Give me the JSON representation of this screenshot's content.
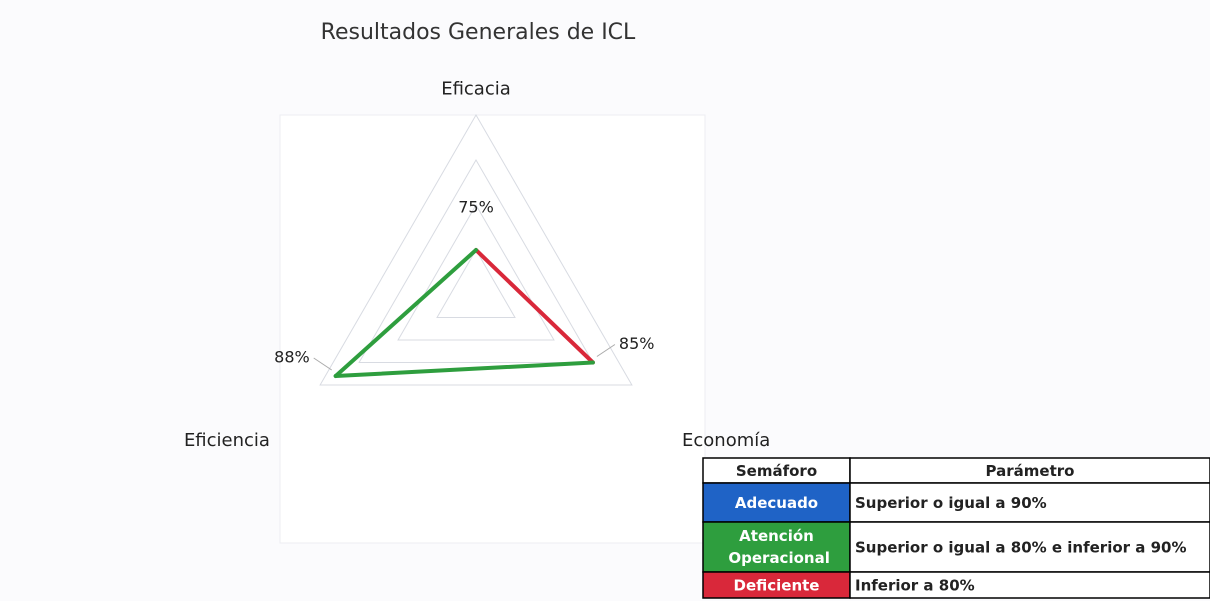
{
  "chart_data": {
    "type": "radar",
    "title": "Resultados Generales de ICL",
    "categories": [
      "Eficacia",
      "Economía",
      "Eficiencia"
    ],
    "values": [
      75,
      85,
      88
    ],
    "value_labels": [
      "75%",
      "85%",
      "88%"
    ],
    "edge_colors": [
      "#d9283a",
      "#2e9e3e",
      "#2e9e3e"
    ],
    "rlim": [
      70,
      90
    ],
    "rticks": [
      75,
      80,
      85,
      90
    ],
    "grid": true
  },
  "table": {
    "header": [
      "Semáforo",
      "Parámetro"
    ],
    "rows": [
      {
        "status": "Adecuado",
        "color": "#1f63c6",
        "parameter": "Superior o igual a 90%"
      },
      {
        "status": "Atención Operacional",
        "color": "#2e9e3e",
        "parameter": "Superior o igual a 80% e inferior a 90%"
      },
      {
        "status": "Deficiente",
        "color": "#d9283a",
        "parameter": "Inferior a 80%"
      }
    ]
  }
}
